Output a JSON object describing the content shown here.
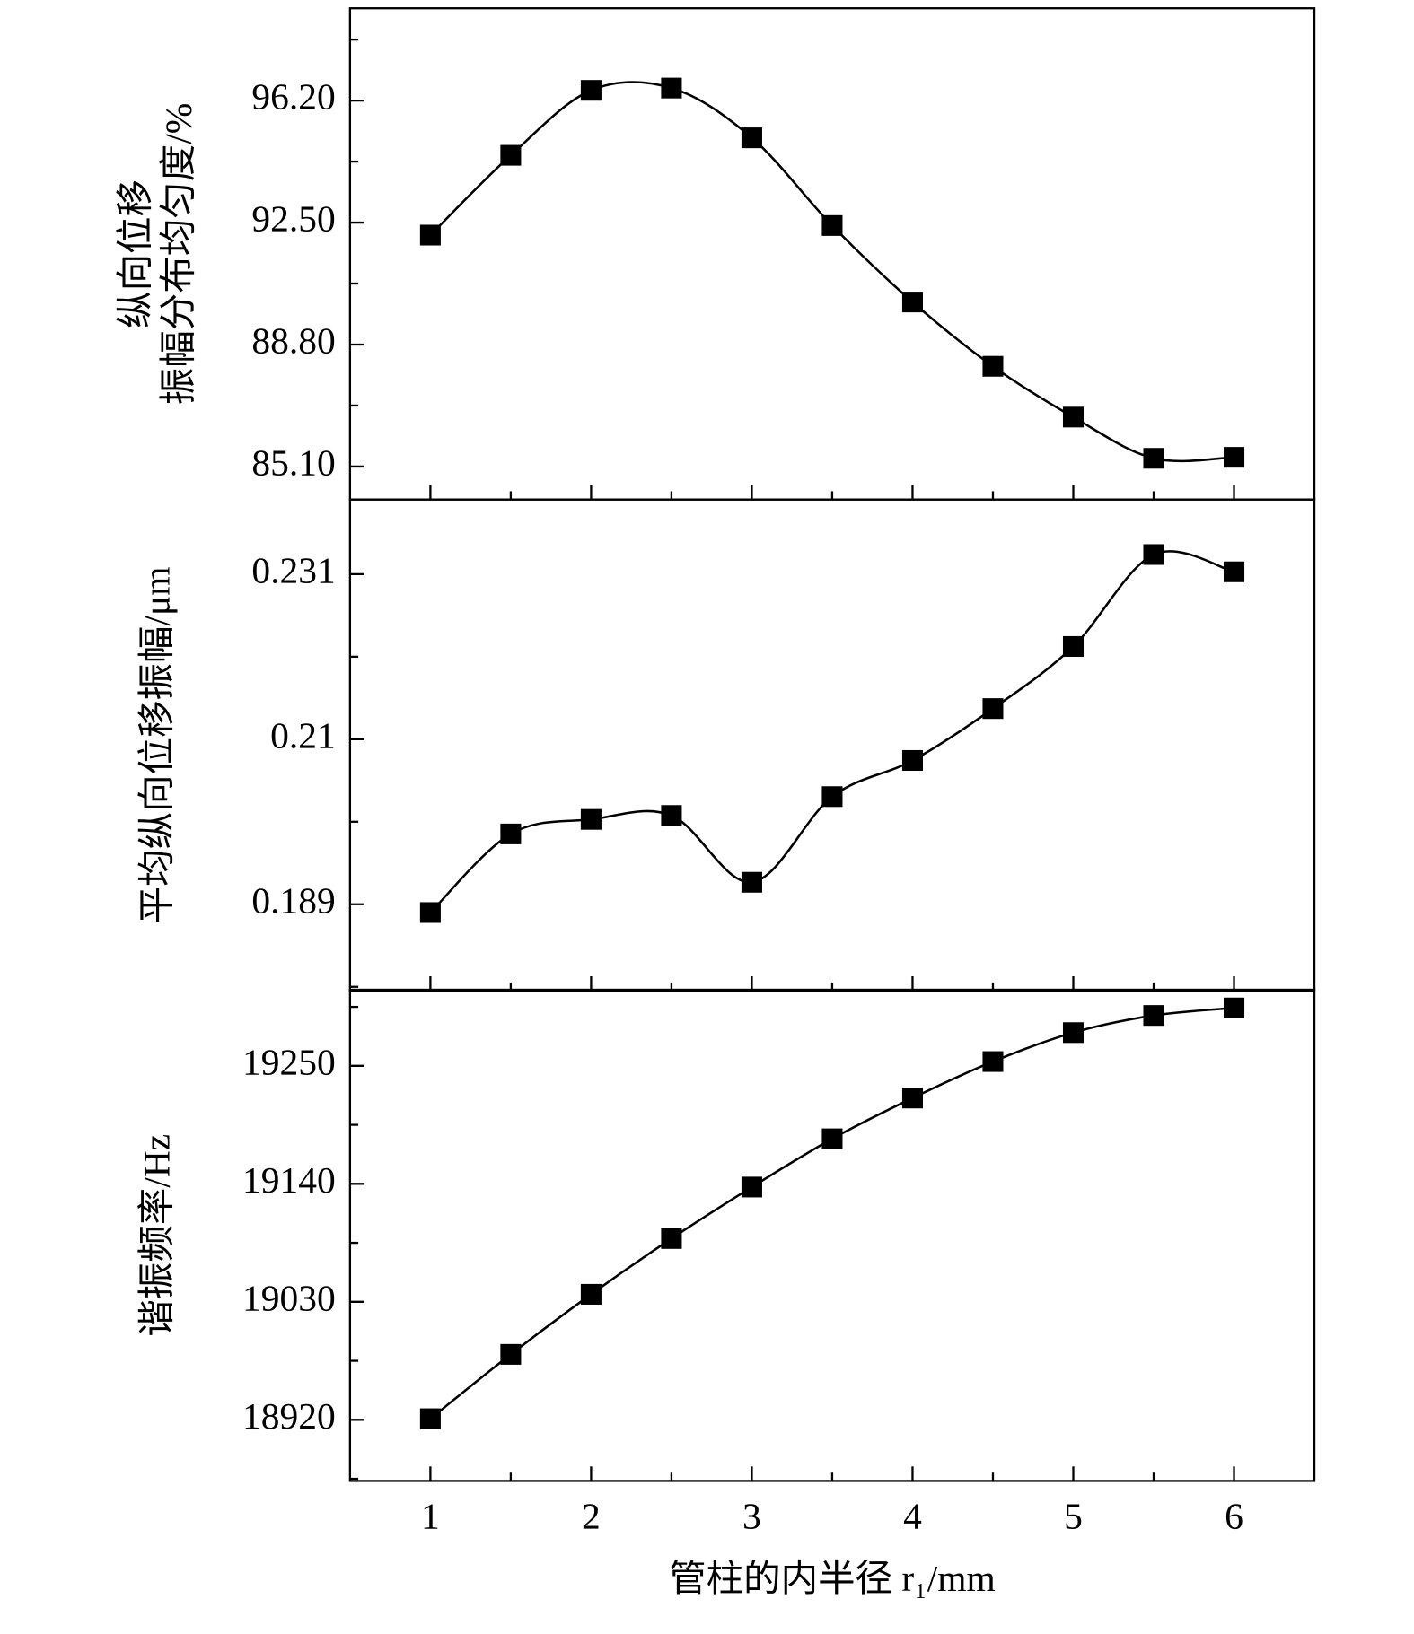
{
  "chart_data": [
    {
      "type": "line",
      "ylabel": [
        "纵向位移",
        "振幅分布均匀度/%"
      ],
      "x": [
        1,
        1.5,
        2,
        2.5,
        3,
        3.5,
        4,
        4.5,
        5,
        5.5,
        6
      ],
      "values": [
        92.12,
        94.54,
        96.51,
        96.58,
        95.07,
        92.41,
        90.09,
        88.14,
        86.6,
        85.35,
        85.38
      ],
      "color": "#000000",
      "smooth": true,
      "xlim": [
        0.5,
        6.5
      ],
      "xticks": [
        1,
        2,
        3,
        4,
        5,
        6
      ],
      "ylim": [
        84.1,
        99
      ],
      "yticks": [
        {
          "value": 85.1,
          "label": "85.10"
        },
        {
          "value": 88.8,
          "label": "88.80"
        },
        {
          "value": 92.5,
          "label": "92.50"
        },
        {
          "value": 96.2,
          "label": "96.20"
        }
      ]
    },
    {
      "type": "line",
      "ylabel": [
        "平均纵向位移振幅/μm"
      ],
      "x": [
        1,
        1.5,
        2,
        2.5,
        3,
        3.5,
        4,
        4.5,
        5,
        5.5,
        6
      ],
      "values": [
        0.18795,
        0.19795,
        0.1998,
        0.2003,
        0.1918,
        0.2027,
        0.2073,
        0.2139,
        0.2218,
        0.2335,
        0.2313
      ],
      "color": "#000000",
      "smooth": true,
      "xlim": [
        0.5,
        6.5
      ],
      "xticks": [
        1,
        2,
        3,
        4,
        5,
        6
      ],
      "ylim": [
        0.178,
        0.2405
      ],
      "yticks": [
        0.189,
        0.21,
        0.231
      ]
    },
    {
      "type": "line",
      "ylabel": [
        "谐振频率/Hz"
      ],
      "xlabel": "管柱的内半径 r₁/mm",
      "x": [
        1,
        1.5,
        2,
        2.5,
        3,
        3.5,
        4,
        4.5,
        5,
        5.5,
        6
      ],
      "values": [
        18921,
        18981,
        19037,
        19089,
        19137,
        19182,
        19220,
        19254,
        19281,
        19297,
        19304
      ],
      "color": "#000000",
      "smooth": true,
      "xlim": [
        0.5,
        6.5
      ],
      "xticks": [
        1,
        2,
        3,
        4,
        5,
        6
      ],
      "ylim": [
        18863,
        19321
      ],
      "yticks": [
        18920,
        19030,
        19140,
        19250
      ]
    }
  ]
}
